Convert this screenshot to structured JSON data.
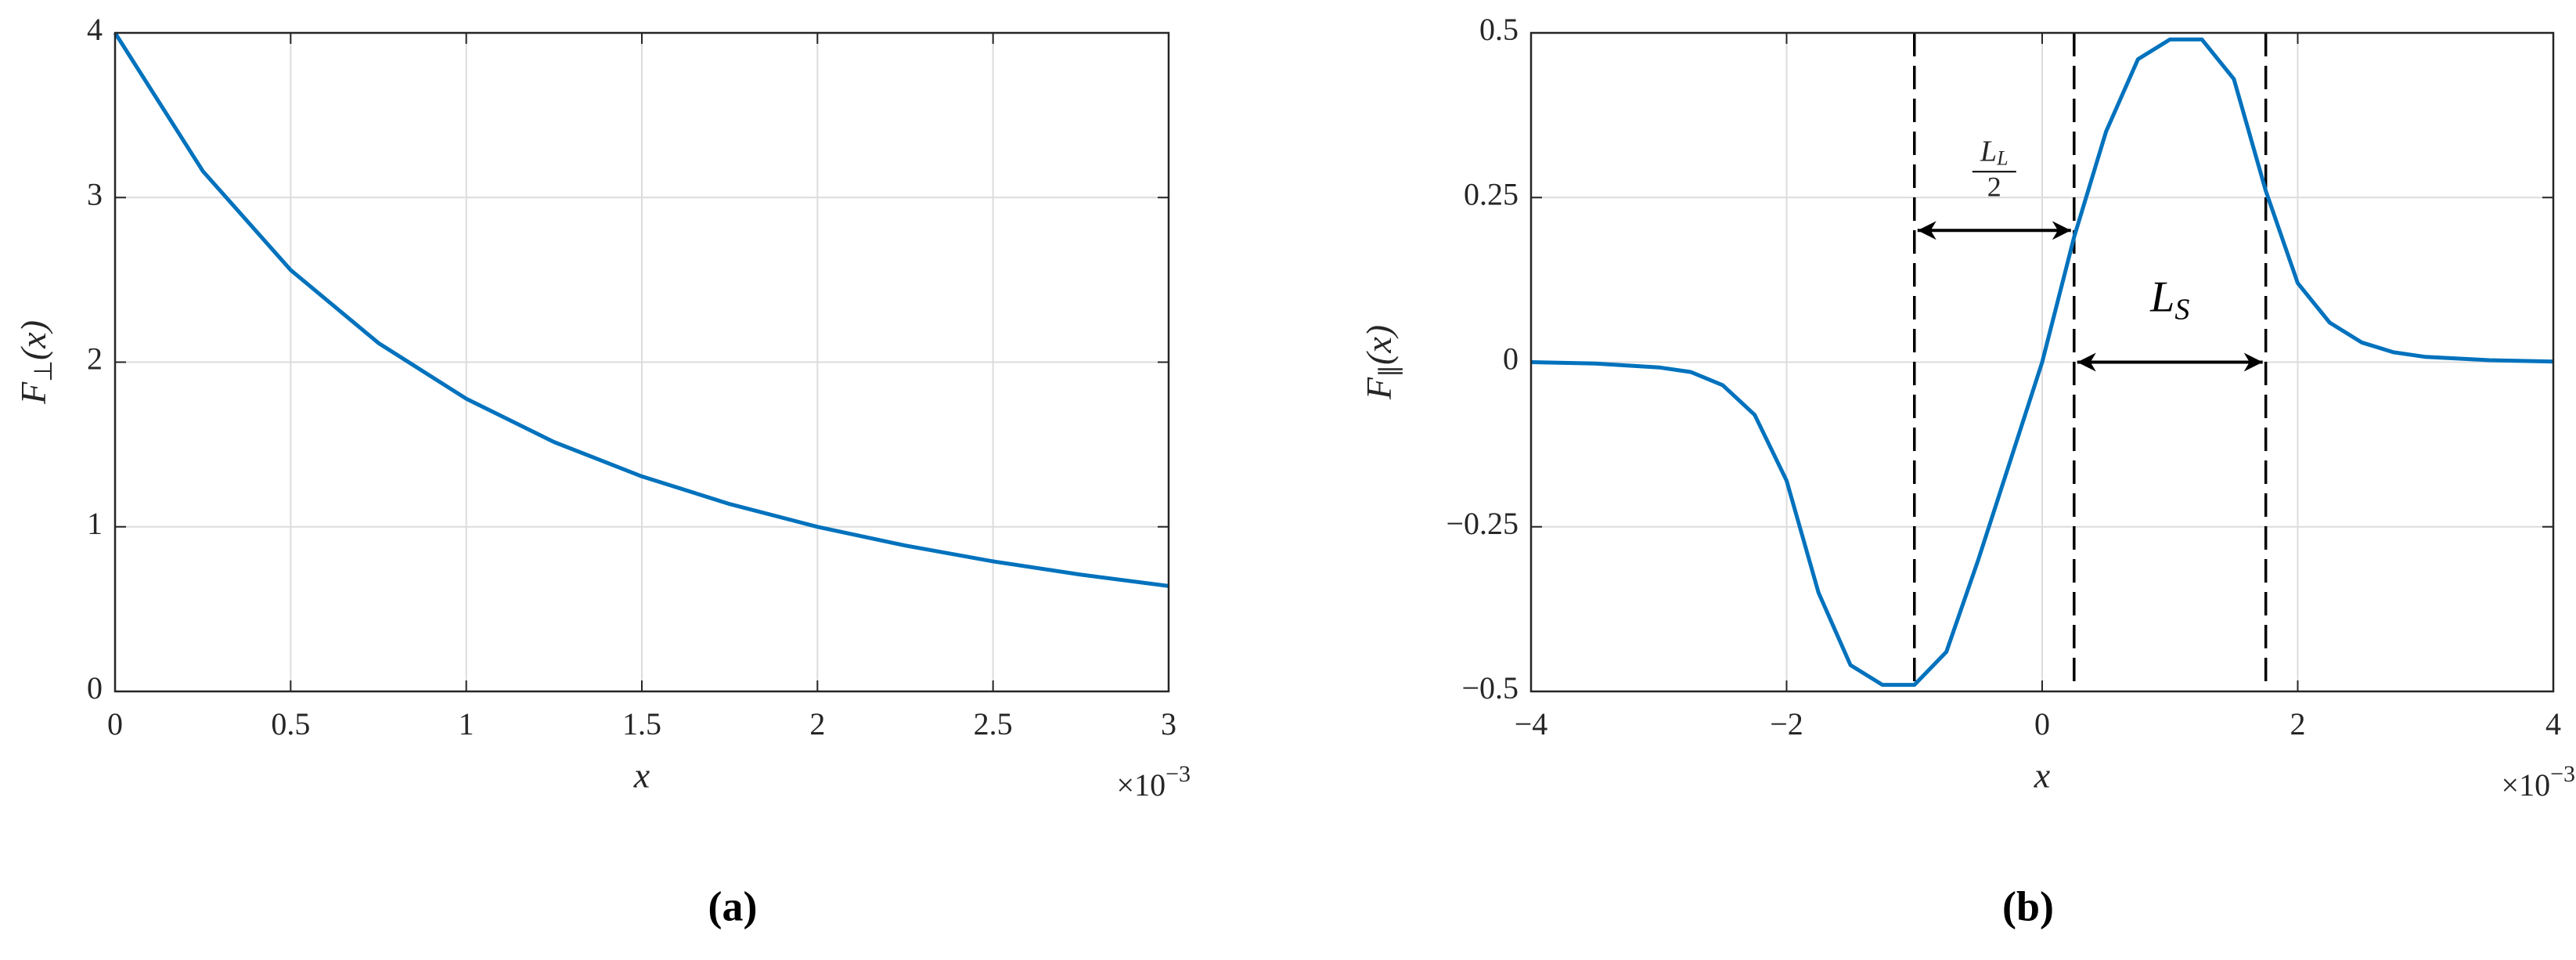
{
  "chart_data": [
    {
      "type": "line",
      "panel": "(a)",
      "x": [
        0,
        0.25,
        0.5,
        0.75,
        1,
        1.25,
        1.5,
        1.75,
        2,
        2.25,
        2.5,
        2.75,
        3
      ],
      "values": [
        4,
        3.16,
        2.56,
        2.116,
        1.778,
        1.515,
        1.306,
        1.138,
        1.0,
        0.886,
        0.79,
        0.709,
        0.64
      ],
      "color": "#0072bd",
      "xlim": [
        0,
        3
      ],
      "xticks": [
        0,
        0.5,
        1,
        1.5,
        2,
        2.5,
        3
      ],
      "ylim": [
        0,
        4
      ],
      "yticks": [
        0,
        1,
        2,
        3,
        4
      ],
      "grid": true,
      "xlabel": "x",
      "ylabel": {
        "main": "F",
        "sub": "⊥",
        "tail": "(x)"
      },
      "x_multiplier": {
        "base": "×10",
        "exp": "−3"
      }
    },
    {
      "type": "line",
      "panel": "(b)",
      "x": [
        -4,
        -3.5,
        -3,
        -2.75,
        -2.5,
        -2.25,
        -2,
        -1.75,
        -1.5,
        -1.25,
        -1,
        -0.75,
        -0.5,
        -0.25,
        0,
        0.25,
        0.5,
        0.75,
        1,
        1.25,
        1.5,
        1.75,
        2,
        2.25,
        2.5,
        2.75,
        3,
        3.5,
        4
      ],
      "values": [
        0,
        -0.002,
        -0.008,
        -0.015,
        -0.035,
        -0.08,
        -0.18,
        -0.35,
        -0.46,
        -0.49,
        -0.49,
        -0.44,
        -0.3,
        -0.15,
        0,
        0.19,
        0.35,
        0.46,
        0.49,
        0.49,
        0.43,
        0.26,
        0.12,
        0.06,
        0.03,
        0.015,
        0.008,
        0.003,
        0.001
      ],
      "color": "#0072bd",
      "xlim": [
        -4,
        4
      ],
      "xticks": [
        {
          "value": -4,
          "label": "−4"
        },
        {
          "value": -2,
          "label": "−2"
        },
        0,
        2,
        4
      ],
      "ylim": [
        -0.5,
        0.5
      ],
      "yticks": [
        {
          "value": -0.5,
          "label": "−0.5"
        },
        {
          "value": -0.25,
          "label": "−0.25"
        },
        0,
        0.25,
        0.5
      ],
      "grid": true,
      "xlabel": "x",
      "ylabel": {
        "main": "F",
        "sub": "∥",
        "tail": "(x)"
      },
      "x_multiplier": {
        "base": "×10",
        "exp": "−3"
      },
      "vlines": [
        -1,
        0.25,
        1.75
      ],
      "arrows": [
        {
          "x": [
            -1,
            0.25
          ],
          "y": 0.2,
          "label": "L",
          "label_sub": "L",
          "label_den": "2"
        },
        {
          "x": [
            0.25,
            1.75
          ],
          "y": 0,
          "label": "L",
          "label_sub": "S"
        }
      ]
    }
  ]
}
